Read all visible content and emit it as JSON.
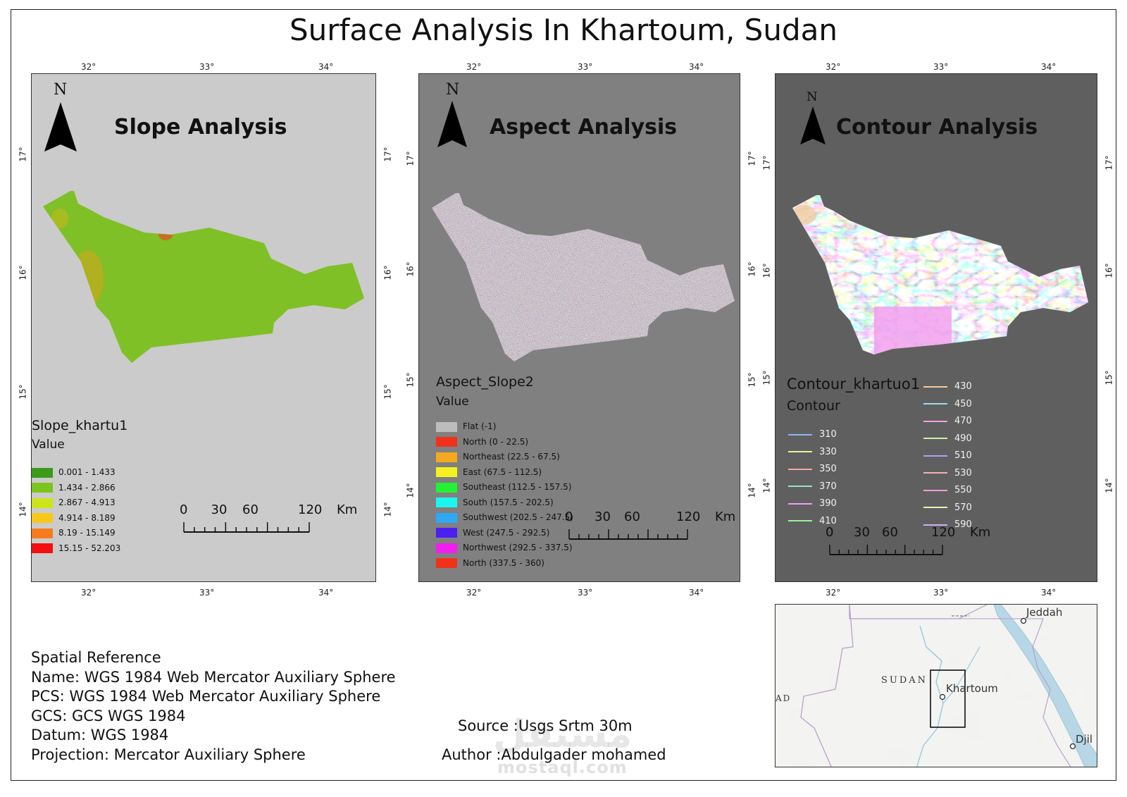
{
  "title": "Surface Analysis In Khartoum, Sudan",
  "panels": {
    "slope": {
      "title": "Slope  Analysis",
      "north": "N",
      "x_ticks": [
        "32°",
        "33°",
        "34°"
      ],
      "y_ticks": [
        "17°",
        "16°",
        "15°",
        "14°"
      ],
      "legend_title": "Slope_khartu1",
      "legend_sub": "Value",
      "legend": [
        {
          "label": "0.001 - 1.433",
          "color": "#3a9a1a"
        },
        {
          "label": "1.434 - 2.866",
          "color": "#7cc41f"
        },
        {
          "label": "2.867 - 4.913",
          "color": "#cde31a"
        },
        {
          "label": "4.914 - 8.189",
          "color": "#f7c81a"
        },
        {
          "label": "8.19 - 15.149",
          "color": "#f77b1a"
        },
        {
          "label": "15.15 - 52.203",
          "color": "#f21010"
        }
      ],
      "scale": {
        "labels": [
          "0",
          "30",
          "60",
          "120"
        ],
        "unit": "Km"
      }
    },
    "aspect": {
      "title": "Aspect Analysis",
      "north": "N",
      "x_ticks": [
        "32°",
        "33°",
        "34°"
      ],
      "y_ticks": [
        "17°",
        "16°",
        "15°",
        "14°"
      ],
      "legend_title": "Aspect_Slope2",
      "legend_sub": "Value",
      "legend": [
        {
          "label": "Flat (-1)",
          "color": "#bdbdbd"
        },
        {
          "label": "North (0 - 22.5)",
          "color": "#f2311b"
        },
        {
          "label": "Northeast (22.5 - 67.5)",
          "color": "#f6a821"
        },
        {
          "label": "East (67.5 - 112.5)",
          "color": "#f4f21e"
        },
        {
          "label": "Southeast (112.5 - 157.5)",
          "color": "#22f233"
        },
        {
          "label": "South (157.5 - 202.5)",
          "color": "#1df6ee"
        },
        {
          "label": "Southwest (202.5 - 247.5)",
          "color": "#2ea8f5"
        },
        {
          "label": "West (247.5 - 292.5)",
          "color": "#4b1ff0"
        },
        {
          "label": "Northwest (292.5 - 337.5)",
          "color": "#f21ef0"
        },
        {
          "label": "North (337.5 - 360)",
          "color": "#f2311b"
        }
      ],
      "scale": {
        "labels": [
          "0",
          "30",
          "60",
          "120"
        ],
        "unit": "Km"
      }
    },
    "contour": {
      "title": "Contour Analysis",
      "north": "N",
      "x_ticks": [
        "32°",
        "33°",
        "34°"
      ],
      "y_ticks": [
        "17°",
        "16°",
        "15°",
        "14°"
      ],
      "legend_title": "Contour_khartuo1",
      "legend_sub": "Contour",
      "legend_left": [
        {
          "label": "310",
          "color": "#8fb4f0"
        },
        {
          "label": "330",
          "color": "#eef29a"
        },
        {
          "label": "350",
          "color": "#f2a7a0"
        },
        {
          "label": "370",
          "color": "#8fe8d2"
        },
        {
          "label": "390",
          "color": "#f29ef0"
        },
        {
          "label": "410",
          "color": "#9af29a"
        }
      ],
      "legend_right": [
        {
          "label": "430",
          "color": "#f2c9a0"
        },
        {
          "label": "450",
          "color": "#a0d8f2"
        },
        {
          "label": "470",
          "color": "#f2a0e6"
        },
        {
          "label": "490",
          "color": "#c8f2a0"
        },
        {
          "label": "510",
          "color": "#b4a0f2"
        },
        {
          "label": "530",
          "color": "#f2b4b4"
        },
        {
          "label": "550",
          "color": "#f2a0d2"
        },
        {
          "label": "570",
          "color": "#e8f2b4"
        },
        {
          "label": "590",
          "color": "#c8b4f2"
        }
      ],
      "scale": {
        "labels": [
          "0",
          "30",
          "60",
          "120"
        ],
        "unit": "Km"
      }
    }
  },
  "inset": {
    "labels": {
      "jeddah": "Jeddah",
      "sudan": "SUDAN",
      "khartoum": "Khartoum",
      "chad": "AD",
      "djibouti": "Djil"
    }
  },
  "spatial_reference": [
    "Spatial Reference",
    "Name: WGS 1984 Web Mercator Auxiliary Sphere",
    "PCS: WGS 1984 Web Mercator Auxiliary Sphere",
    "GCS: GCS WGS 1984",
    "Datum: WGS 1984",
    "Projection: Mercator Auxiliary Sphere"
  ],
  "source": "Source :Usgs Srtm 30m",
  "author": "Author :Abdulgader mohamed",
  "watermark": {
    "arabic": "مستقل",
    "latin": "mostaql.com"
  }
}
